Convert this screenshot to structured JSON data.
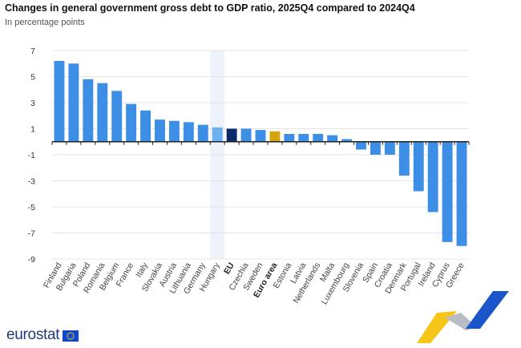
{
  "header": {
    "title": "Changes in general government gross debt to GDP ratio, 2025Q4 compared to 2024Q4",
    "subtitle": "In percentage points"
  },
  "footer": {
    "logo_text": "eurostat"
  },
  "colors": {
    "bar": "#3d8fe6",
    "bar_highlight": "#6cb0f2",
    "eu": "#0b2a6b",
    "euro_area": "#d4a40f",
    "highlight_band": "#eef2fa",
    "grid": "#e4e4e4",
    "axis": "#222222"
  },
  "chart_data": {
    "type": "bar",
    "title": "Changes in general government gross debt to GDP ratio, 2025Q4 compared to 2024Q4",
    "subtitle": "In percentage points",
    "xlabel": "",
    "ylabel": "",
    "ylim": [
      -9,
      7
    ],
    "yticks": [
      7,
      5,
      3,
      1,
      -1,
      -3,
      -5,
      -7,
      -9
    ],
    "grid": true,
    "categories": [
      "Finland",
      "Bulgaria",
      "Poland",
      "Romania",
      "Belgium",
      "France",
      "Italy",
      "Slovakia",
      "Austria",
      "Lithuania",
      "Germany",
      "Hungary",
      "EU",
      "Czechia",
      "Sweden",
      "Euro area",
      "Estonia",
      "Latvia",
      "Netherlands",
      "Malta",
      "Luxembourg",
      "Slovenia",
      "Spain",
      "Croatia",
      "Denmark",
      "Portugal",
      "Ireland",
      "Cyprus",
      "Greece"
    ],
    "values": [
      6.2,
      6.0,
      4.8,
      4.5,
      3.9,
      2.9,
      2.4,
      1.7,
      1.6,
      1.5,
      1.3,
      1.1,
      1.0,
      1.0,
      0.9,
      0.8,
      0.6,
      0.6,
      0.6,
      0.5,
      0.2,
      -0.6,
      -1.0,
      -1.0,
      -2.6,
      -3.8,
      -5.4,
      -7.7,
      -8.0
    ],
    "bold_categories": [
      "EU",
      "Euro area"
    ],
    "highlighted_category": "Hungary"
  }
}
